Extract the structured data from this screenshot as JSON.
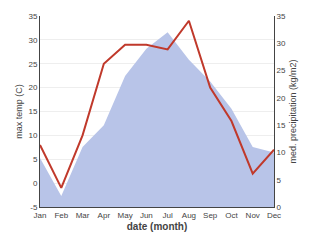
{
  "chart_data": {
    "type": "line",
    "xlabel": "date (month)",
    "ylabel": "max temp (C)",
    "y2label": "med. precipitation (kg/m2)",
    "categories": [
      "Jan",
      "Feb",
      "Mar",
      "Apr",
      "May",
      "Jun",
      "Jul",
      "Aug",
      "Sep",
      "Oct",
      "Nov",
      "Dec"
    ],
    "series": [
      {
        "type": "area",
        "axis": "y2",
        "color": "#b8c4e8",
        "values": [
          9,
          2,
          11,
          15,
          24,
          29,
          32,
          27,
          23,
          18,
          11,
          10
        ]
      },
      {
        "type": "line",
        "color": "#c0392b",
        "values": [
          8,
          -1,
          10,
          25,
          29,
          29,
          28,
          34,
          20,
          13,
          2,
          7
        ]
      }
    ],
    "ylim": [
      -5,
      35
    ],
    "yticks": [
      -5,
      0,
      5,
      10,
      15,
      20,
      25,
      30,
      35
    ],
    "y2lim": [
      0,
      35
    ],
    "y2ticks": [
      0,
      5,
      10,
      15,
      20,
      25,
      30,
      35
    ],
    "grid": true
  }
}
